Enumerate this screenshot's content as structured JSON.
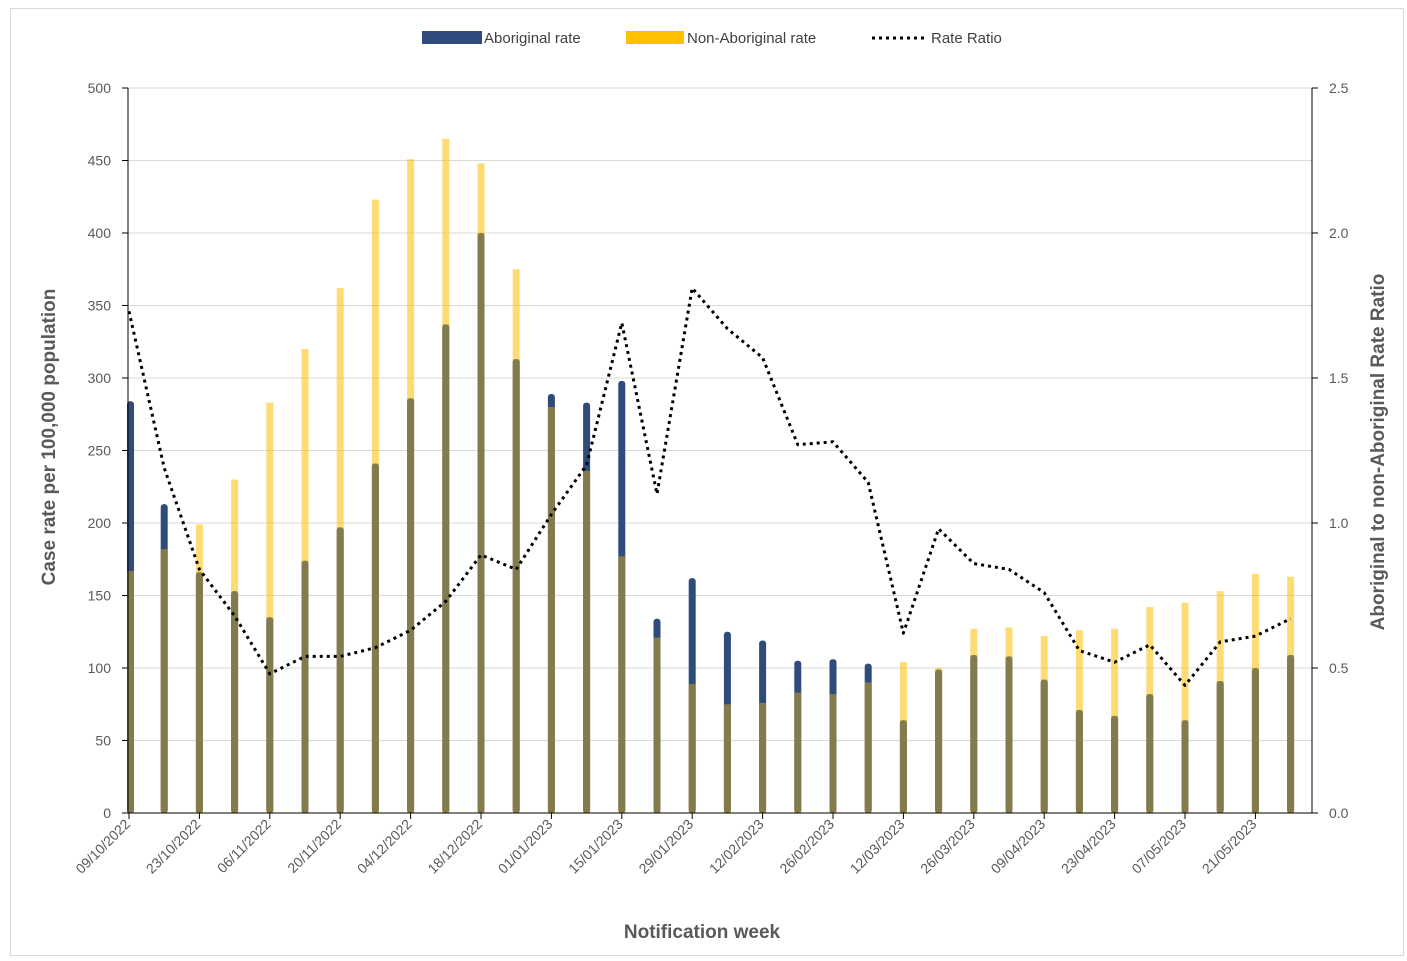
{
  "chart_data": {
    "type": "bar",
    "xlabel": "Notification week",
    "ylabel": "Case rate per 100,000 population",
    "y2label": "Aboriginal to non-Aboriginal Rate Ratio",
    "ylim": [
      0,
      500
    ],
    "y2lim": [
      0,
      2.5
    ],
    "yticks": [
      "0",
      "50",
      "100",
      "150",
      "200",
      "250",
      "300",
      "350",
      "400",
      "450",
      "500"
    ],
    "y2ticks": [
      "0.0",
      "0.5",
      "1.0",
      "1.5",
      "2.0",
      "2.5"
    ],
    "grid": true,
    "legend_position": "top-center",
    "x_tick_labels": [
      "09/10/2022",
      "23/10/2022",
      "06/11/2022",
      "20/11/2022",
      "04/12/2022",
      "18/12/2022",
      "01/01/2023",
      "15/01/2023",
      "29/01/2023",
      "12/02/2023",
      "26/02/2023",
      "12/03/2023",
      "26/03/2023",
      "09/04/2023",
      "23/04/2023",
      "07/05/2023",
      "21/05/2023"
    ],
    "x_week_count": 34,
    "series": [
      {
        "name": "Aboriginal rate",
        "type": "bar",
        "color": "#2f4b7c",
        "values": [
          284,
          213,
          166,
          153,
          135,
          174,
          197,
          241,
          286,
          337,
          400,
          313,
          289,
          283,
          298,
          134,
          162,
          125,
          119,
          105,
          106,
          103,
          64,
          99,
          109,
          108,
          92,
          71,
          67,
          82,
          64,
          91,
          100,
          109
        ]
      },
      {
        "name": "Non-Aboriginal rate",
        "type": "bar",
        "color": "#ffc000",
        "values": [
          167,
          182,
          199,
          230,
          283,
          320,
          362,
          423,
          451,
          465,
          448,
          375,
          280,
          236,
          177,
          121,
          89,
          75,
          76,
          83,
          82,
          90,
          104,
          100,
          127,
          128,
          122,
          126,
          127,
          142,
          145,
          153,
          165,
          163
        ]
      },
      {
        "name": "Rate Ratio",
        "type": "line",
        "axis": "right",
        "color": "#000000",
        "style": "dotted",
        "values": [
          1.73,
          1.19,
          0.84,
          0.68,
          0.48,
          0.54,
          0.54,
          0.57,
          0.63,
          0.73,
          0.89,
          0.84,
          1.03,
          1.2,
          1.69,
          1.1,
          1.81,
          1.67,
          1.57,
          1.27,
          1.28,
          1.14,
          0.62,
          0.98,
          0.86,
          0.84,
          0.76,
          0.56,
          0.52,
          0.58,
          0.44,
          0.59,
          0.61,
          0.67
        ]
      }
    ]
  }
}
